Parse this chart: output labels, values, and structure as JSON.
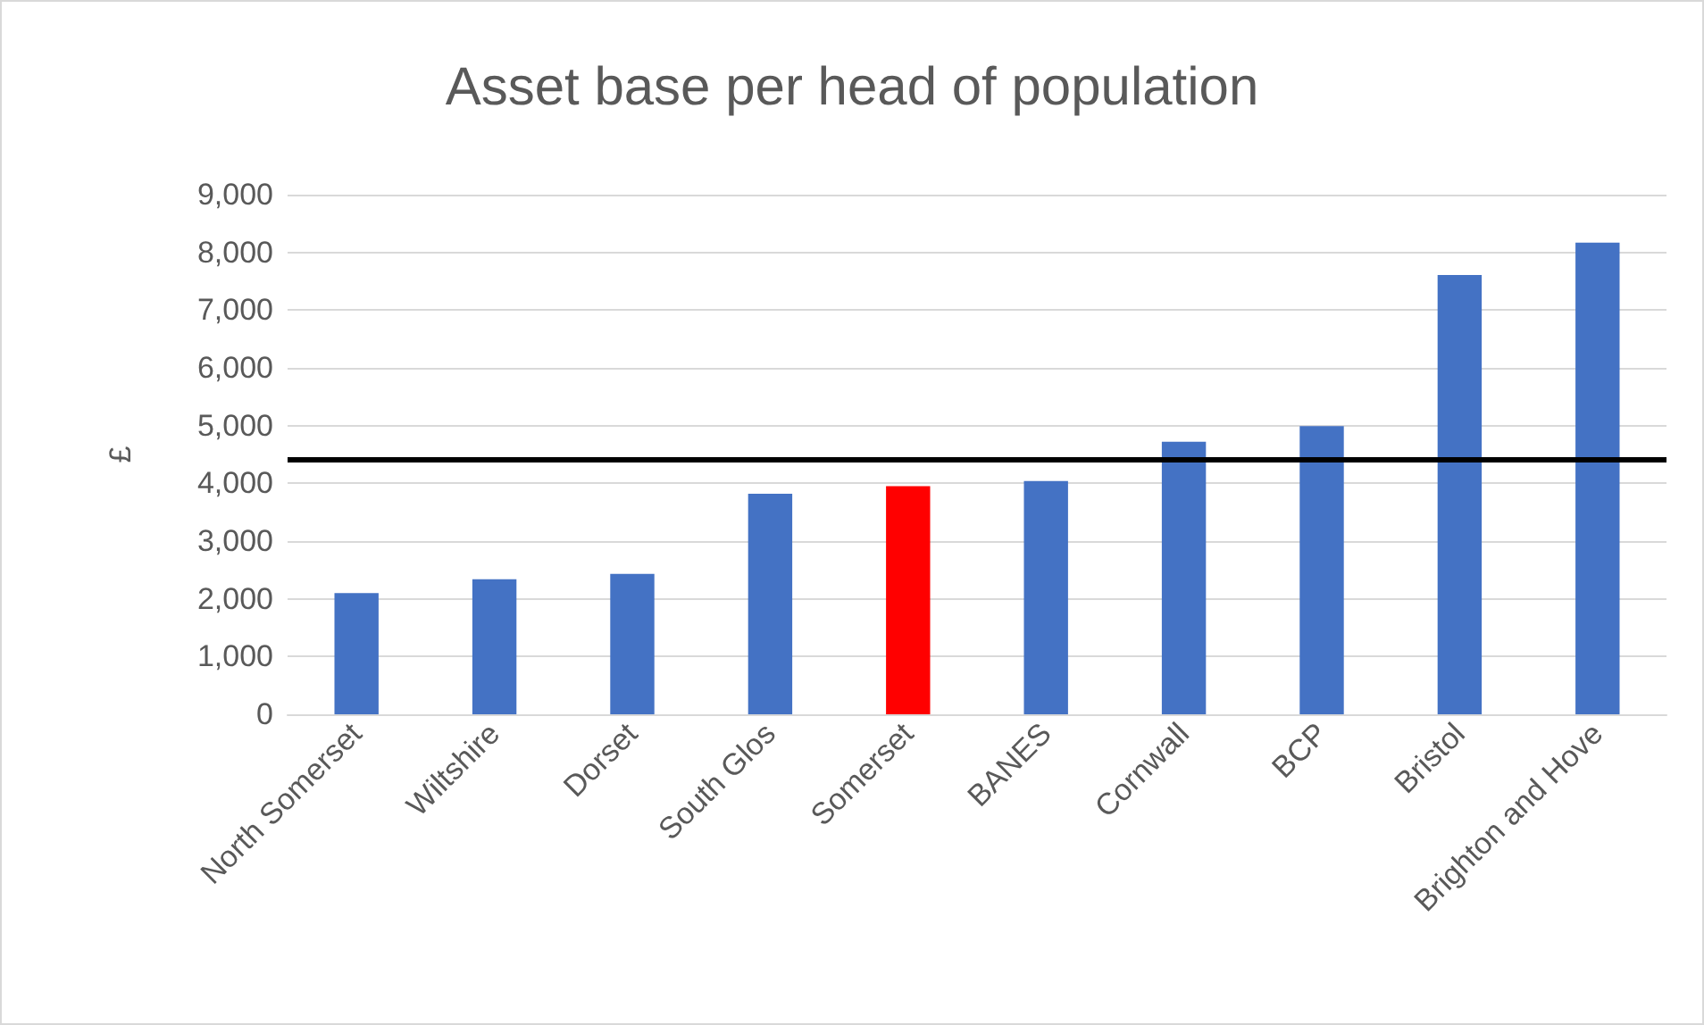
{
  "chart_data": {
    "type": "bar",
    "title": "Asset base per head of population",
    "ylabel": "£",
    "categories": [
      "North Somerset",
      "Wiltshire",
      "Dorset",
      "South Glos",
      "Somerset",
      "BANES",
      "Cornwall",
      "BCP",
      "Bristol",
      "Brighton and Hove"
    ],
    "values": [
      2100,
      2340,
      2430,
      3820,
      3950,
      4040,
      4720,
      4990,
      7610,
      8170
    ],
    "colors": [
      "#4472c4",
      "#4472c4",
      "#4472c4",
      "#4472c4",
      "#ff0000",
      "#4472c4",
      "#4472c4",
      "#4472c4",
      "#4472c4",
      "#4472c4"
    ],
    "ylim": [
      0,
      9000
    ],
    "yticks": [
      0,
      {
        "value": 1000,
        "label": "1,000"
      },
      {
        "value": 2000,
        "label": "2,000"
      },
      {
        "value": 3000,
        "label": "3,000"
      },
      {
        "value": 4000,
        "label": "4,000"
      },
      {
        "value": 5000,
        "label": "5,000"
      },
      {
        "value": 6000,
        "label": "6,000"
      },
      {
        "value": 7000,
        "label": "7,000"
      },
      {
        "value": 8000,
        "label": "8,000"
      },
      {
        "value": 9000,
        "label": "9,000"
      }
    ],
    "grid": "y",
    "ref_lines": [
      {
        "axis": "y",
        "value": 4410,
        "color": "#000000"
      }
    ]
  }
}
